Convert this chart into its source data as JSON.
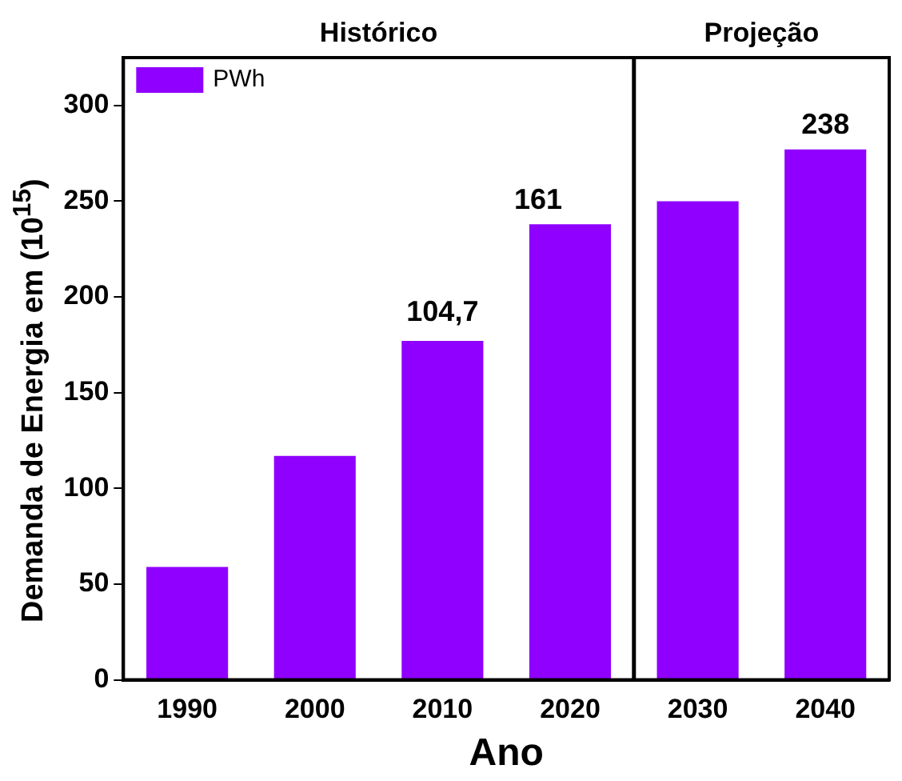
{
  "chart_data": {
    "type": "bar",
    "xlabel": "Ano",
    "ylabel": "Demanda de Energia em (10$^{15}$)",
    "categories": [
      "1990",
      "2000",
      "2010",
      "2020",
      "2030",
      "2040"
    ],
    "series": [
      {
        "name": "PWh",
        "color": "#8f00ff",
        "values": [
          59,
          117,
          177,
          238,
          250,
          277
        ]
      }
    ],
    "ylim": [
      0,
      325
    ],
    "yticks": [
      0,
      50,
      100,
      150,
      200,
      250,
      300
    ],
    "grid": false,
    "legend": "top left",
    "annotations": [
      "Histórico",
      "Projeção",
      "104,7",
      "161",
      "238"
    ]
  }
}
